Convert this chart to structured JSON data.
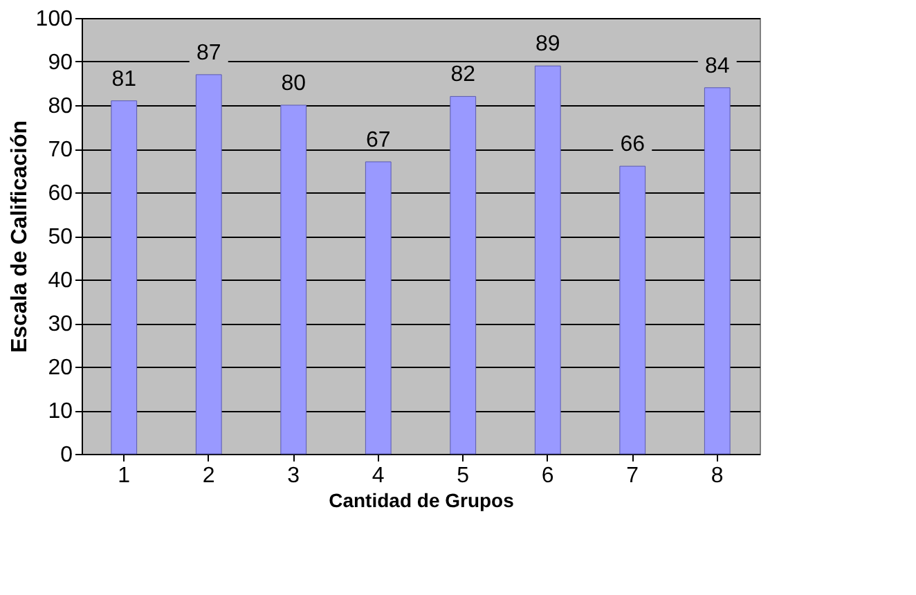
{
  "chart_data": {
    "type": "bar",
    "xlabel": "Cantidad de Grupos",
    "ylabel": "Escala de Calificación",
    "categories": [
      "1",
      "2",
      "3",
      "4",
      "5",
      "6",
      "7",
      "8"
    ],
    "values": [
      81,
      87,
      80,
      67,
      82,
      89,
      66,
      84
    ],
    "color": "#9999ff",
    "ylim": [
      0,
      100
    ],
    "yticks": [
      0,
      10,
      20,
      30,
      40,
      50,
      60,
      70,
      80,
      90,
      100
    ],
    "grid": "y",
    "data_labels": true
  }
}
